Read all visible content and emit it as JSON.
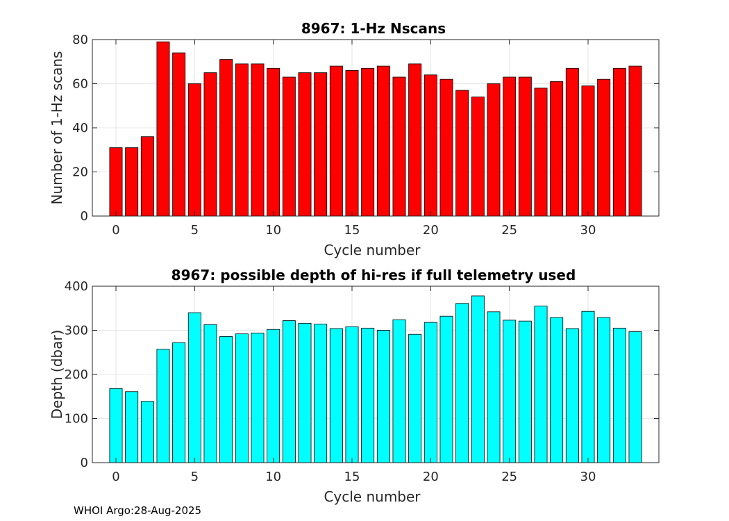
{
  "footer": "WHOI Argo:28-Aug-2025",
  "chart_data": [
    {
      "type": "bar",
      "title": "8967: 1-Hz Nscans",
      "xlabel": "Cycle number",
      "ylabel": "Number of 1-Hz scans",
      "x": [
        0,
        1,
        2,
        3,
        4,
        5,
        6,
        7,
        8,
        9,
        10,
        11,
        12,
        13,
        14,
        15,
        16,
        17,
        18,
        19,
        20,
        21,
        22,
        23,
        24,
        25,
        26,
        27,
        28,
        29,
        30,
        31,
        32,
        33
      ],
      "values": [
        31,
        31,
        36,
        79,
        74,
        60,
        65,
        71,
        69,
        69,
        67,
        63,
        65,
        65,
        68,
        66,
        67,
        68,
        63,
        69,
        64,
        62,
        57,
        54,
        60,
        63,
        63,
        58,
        61,
        67,
        59,
        62,
        67,
        68
      ],
      "xlim": [
        -1.5,
        34.5
      ],
      "ylim": [
        0,
        80
      ],
      "xticks": [
        0,
        5,
        10,
        15,
        20,
        25,
        30
      ],
      "yticks": [
        0,
        20,
        40,
        60,
        80
      ],
      "bar_color": "#ff0000",
      "grid": true
    },
    {
      "type": "bar",
      "title": "8967: possible depth of hi-res if full telemetry used",
      "xlabel": "Cycle number",
      "ylabel": "Depth (dbar)",
      "x": [
        0,
        1,
        2,
        3,
        4,
        5,
        6,
        7,
        8,
        9,
        10,
        11,
        12,
        13,
        14,
        15,
        16,
        17,
        18,
        19,
        20,
        21,
        22,
        23,
        24,
        25,
        26,
        27,
        28,
        29,
        30,
        31,
        32,
        33
      ],
      "values": [
        168,
        161,
        139,
        257,
        272,
        340,
        313,
        286,
        292,
        294,
        302,
        322,
        316,
        314,
        304,
        308,
        305,
        300,
        324,
        291,
        318,
        332,
        361,
        378,
        342,
        323,
        321,
        355,
        329,
        304,
        343,
        329,
        305,
        297
      ],
      "xlim": [
        -1.5,
        34.5
      ],
      "ylim": [
        0,
        400
      ],
      "xticks": [
        0,
        5,
        10,
        15,
        20,
        25,
        30
      ],
      "yticks": [
        0,
        100,
        200,
        300,
        400
      ],
      "bar_color": "#00ffff",
      "grid": true
    }
  ]
}
